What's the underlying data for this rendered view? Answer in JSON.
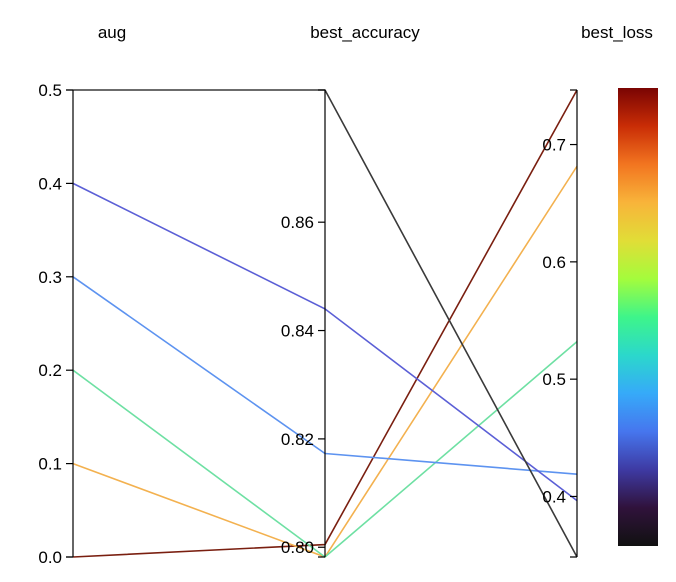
{
  "chart_data": {
    "type": "parallel_coordinates",
    "dimensions": [
      {
        "name": "aug",
        "range": [
          0,
          0.5
        ],
        "ticks": [
          0,
          0.1,
          0.2,
          0.3,
          0.4,
          0.5
        ],
        "tick_labels": [
          "0.0",
          "0.1",
          "0.2",
          "0.3",
          "0.4",
          "0.5"
        ]
      },
      {
        "name": "best_accuracy",
        "range": [
          0.7982,
          0.8844
        ],
        "ticks": [
          0.8,
          0.82,
          0.84,
          0.86
        ],
        "tick_labels": [
          "0.80",
          "0.82",
          "0.84",
          "0.86"
        ]
      },
      {
        "name": "best_loss",
        "range": [
          0.3484,
          0.7465
        ],
        "ticks": [
          0.4,
          0.5,
          0.6,
          0.7
        ],
        "tick_labels": [
          "0.4",
          "0.5",
          "0.6",
          "0.7"
        ]
      }
    ],
    "lines": [
      {
        "values": [
          0.0,
          0.8005,
          0.7465
        ],
        "color": "#7a1f10"
      },
      {
        "values": [
          0.1,
          0.7982,
          0.6815
        ],
        "color": "#f3b14f"
      },
      {
        "values": [
          0.2,
          0.7982,
          0.532
        ],
        "color": "#6ee0a3"
      },
      {
        "values": [
          0.3,
          0.8173,
          0.419
        ],
        "color": "#5d93f0"
      },
      {
        "values": [
          0.4,
          0.844,
          0.3965
        ],
        "color": "#5b5fd6"
      },
      {
        "values": [
          0.5,
          0.8844,
          0.3484
        ],
        "color": "#3a3a3a"
      }
    ],
    "colorscale": {
      "stops": [
        "#7a0403",
        "#c92d06",
        "#f27520",
        "#f8b43a",
        "#e1dd37",
        "#a4fc3c",
        "#3ef58a",
        "#2bd8cb",
        "#36aaf9",
        "#4676ee",
        "#3e3aa3",
        "#30123b",
        "#111111"
      ],
      "tick_labels": []
    }
  }
}
